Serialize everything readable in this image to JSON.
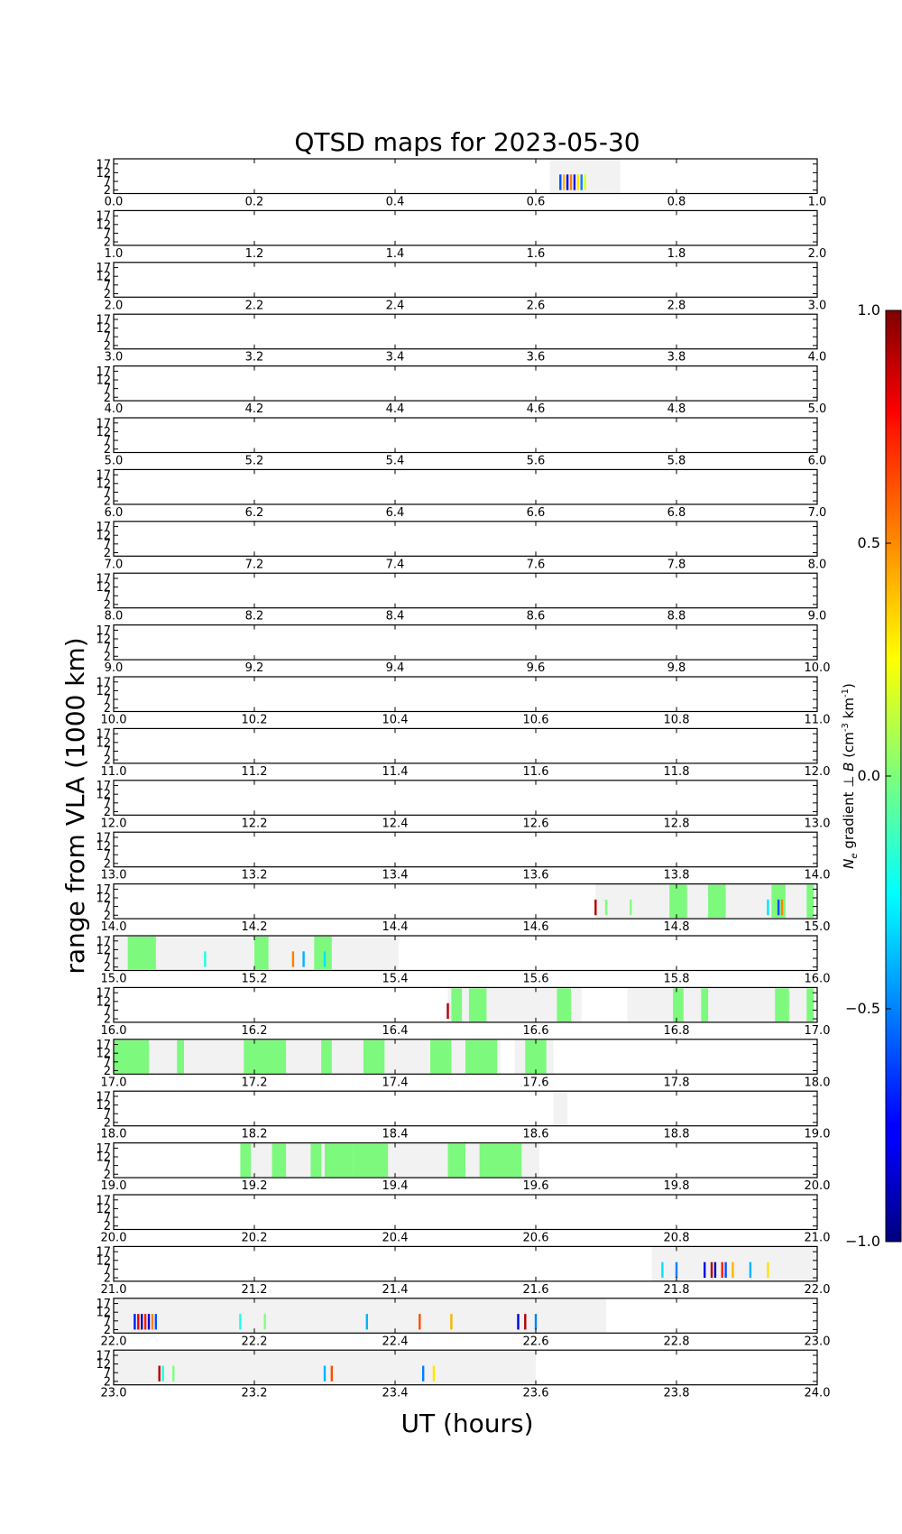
{
  "chart_data": {
    "type": "heatmap",
    "title": "QTSD maps for 2023-05-30",
    "xlabel": "UT (hours)",
    "ylabel": "range from VLA (1000 km)",
    "y_ticks": [
      "17",
      "12",
      "7",
      "2"
    ],
    "ylim": [
      0,
      20
    ],
    "panel_count": 24,
    "panel_hours": 1,
    "x_tick_step": 0.2,
    "colorbar": {
      "label": "N_e gradient ⊥ B (cm⁻³ km⁻¹)",
      "label_main": "gradient",
      "label_var": "N",
      "label_sub": "e",
      "label_b": "B",
      "label_units": "(cm",
      "label_units_exp": "-3",
      "label_units_km": "km",
      "label_units_km_exp": "-1",
      "label_close": ")",
      "ticks": [
        "1.0",
        "0.5",
        "0.0",
        "−0.5",
        "−1.0"
      ],
      "min": -1.0,
      "max": 1.0
    },
    "panels": [
      {
        "start": 0.0,
        "coverage": [
          [
            0.62,
            0.72
          ]
        ],
        "green_bands": [],
        "features": [
          {
            "t": 0.635,
            "v": -0.6
          },
          {
            "t": 0.64,
            "v": 0.4
          },
          {
            "t": 0.645,
            "v": -0.8
          },
          {
            "t": 0.65,
            "v": 0.5
          },
          {
            "t": 0.655,
            "v": -0.7
          },
          {
            "t": 0.66,
            "v": 0.3
          },
          {
            "t": 0.665,
            "v": -0.5
          },
          {
            "t": 0.67,
            "v": 0.2
          }
        ]
      },
      {
        "start": 1.0,
        "coverage": [],
        "green_bands": [],
        "features": []
      },
      {
        "start": 2.0,
        "coverage": [],
        "green_bands": [],
        "features": []
      },
      {
        "start": 3.0,
        "coverage": [],
        "green_bands": [],
        "features": []
      },
      {
        "start": 4.0,
        "coverage": [],
        "green_bands": [],
        "features": []
      },
      {
        "start": 5.0,
        "coverage": [],
        "green_bands": [],
        "features": []
      },
      {
        "start": 6.0,
        "coverage": [],
        "green_bands": [],
        "features": []
      },
      {
        "start": 7.0,
        "coverage": [],
        "green_bands": [],
        "features": []
      },
      {
        "start": 8.0,
        "coverage": [],
        "green_bands": [],
        "features": []
      },
      {
        "start": 9.0,
        "coverage": [],
        "green_bands": [],
        "features": []
      },
      {
        "start": 10.0,
        "coverage": [],
        "green_bands": [],
        "features": []
      },
      {
        "start": 11.0,
        "coverage": [],
        "green_bands": [],
        "features": []
      },
      {
        "start": 12.0,
        "coverage": [],
        "green_bands": [],
        "features": []
      },
      {
        "start": 13.0,
        "coverage": [],
        "green_bands": [],
        "features": []
      },
      {
        "start": 14.0,
        "coverage": [
          [
            0.685,
            1.0
          ]
        ],
        "green_bands": [
          [
            0.79,
            0.815
          ],
          [
            0.845,
            0.87
          ],
          [
            0.935,
            0.955
          ],
          [
            0.985,
            0.995
          ]
        ],
        "features": [
          {
            "t": 0.7,
            "v": 0.0
          },
          {
            "t": 0.735,
            "v": 0.0
          },
          {
            "t": 0.93,
            "v": -0.3
          },
          {
            "t": 0.945,
            "v": -0.6
          },
          {
            "t": 0.95,
            "v": 0.5
          },
          {
            "t": 0.685,
            "v": 0.9
          }
        ]
      },
      {
        "start": 15.0,
        "coverage": [
          [
            0.0,
            0.405
          ]
        ],
        "green_bands": [
          [
            0.02,
            0.06
          ],
          [
            0.2,
            0.22
          ],
          [
            0.285,
            0.31
          ]
        ],
        "features": [
          {
            "t": 0.13,
            "v": -0.2
          },
          {
            "t": 0.255,
            "v": 0.5
          },
          {
            "t": 0.27,
            "v": -0.4
          },
          {
            "t": 0.3,
            "v": -0.3
          }
        ]
      },
      {
        "start": 16.0,
        "coverage": [
          [
            0.475,
            0.665
          ],
          [
            0.73,
            1.0
          ]
        ],
        "green_bands": [
          [
            0.48,
            0.495
          ],
          [
            0.505,
            0.53
          ],
          [
            0.63,
            0.65
          ],
          [
            0.795,
            0.81
          ],
          [
            0.835,
            0.845
          ],
          [
            0.94,
            0.96
          ],
          [
            0.985,
            0.995
          ]
        ],
        "features": [
          {
            "t": 0.475,
            "v": 0.9
          }
        ]
      },
      {
        "start": 17.0,
        "coverage": [
          [
            0.0,
            0.55
          ],
          [
            0.57,
            0.625
          ]
        ],
        "green_bands": [
          [
            0.0,
            0.05
          ],
          [
            0.09,
            0.1
          ],
          [
            0.185,
            0.245
          ],
          [
            0.295,
            0.31
          ],
          [
            0.355,
            0.385
          ],
          [
            0.45,
            0.48
          ],
          [
            0.5,
            0.545
          ],
          [
            0.585,
            0.615
          ]
        ],
        "features": []
      },
      {
        "start": 18.0,
        "coverage": [
          [
            0.625,
            0.645
          ]
        ],
        "green_bands": [],
        "features": []
      },
      {
        "start": 19.0,
        "coverage": [
          [
            0.18,
            0.605
          ]
        ],
        "green_bands": [
          [
            0.18,
            0.195
          ],
          [
            0.225,
            0.245
          ],
          [
            0.28,
            0.295
          ],
          [
            0.3,
            0.34
          ],
          [
            0.34,
            0.39
          ],
          [
            0.475,
            0.5
          ],
          [
            0.52,
            0.58
          ]
        ],
        "features": []
      },
      {
        "start": 20.0,
        "coverage": [],
        "green_bands": [],
        "features": []
      },
      {
        "start": 21.0,
        "coverage": [
          [
            0.765,
            1.0
          ]
        ],
        "green_bands": [],
        "features": [
          {
            "t": 0.78,
            "v": -0.3
          },
          {
            "t": 0.8,
            "v": -0.5
          },
          {
            "t": 0.84,
            "v": -0.8
          },
          {
            "t": 0.85,
            "v": 0.9
          },
          {
            "t": 0.855,
            "v": -0.9
          },
          {
            "t": 0.865,
            "v": 0.7
          },
          {
            "t": 0.87,
            "v": -0.6
          },
          {
            "t": 0.88,
            "v": 0.4
          },
          {
            "t": 0.905,
            "v": -0.4
          },
          {
            "t": 0.93,
            "v": 0.3
          }
        ]
      },
      {
        "start": 22.0,
        "coverage": [
          [
            0.0,
            0.7
          ]
        ],
        "green_bands": [],
        "features": [
          {
            "t": 0.03,
            "v": -0.7
          },
          {
            "t": 0.035,
            "v": 0.8
          },
          {
            "t": 0.04,
            "v": -0.9
          },
          {
            "t": 0.045,
            "v": 0.7
          },
          {
            "t": 0.05,
            "v": -0.8
          },
          {
            "t": 0.055,
            "v": 0.5
          },
          {
            "t": 0.06,
            "v": -0.6
          },
          {
            "t": 0.18,
            "v": -0.2
          },
          {
            "t": 0.215,
            "v": 0.0
          },
          {
            "t": 0.36,
            "v": -0.4
          },
          {
            "t": 0.435,
            "v": 0.6
          },
          {
            "t": 0.48,
            "v": 0.4
          },
          {
            "t": 0.575,
            "v": -0.8
          },
          {
            "t": 0.585,
            "v": 0.9
          },
          {
            "t": 0.6,
            "v": -0.5
          }
        ]
      },
      {
        "start": 23.0,
        "coverage": [
          [
            0.0,
            0.6
          ]
        ],
        "green_bands": [],
        "features": [
          {
            "t": 0.065,
            "v": 0.9
          },
          {
            "t": 0.07,
            "v": -0.2
          },
          {
            "t": 0.085,
            "v": 0.0
          },
          {
            "t": 0.3,
            "v": -0.4
          },
          {
            "t": 0.31,
            "v": 0.6
          },
          {
            "t": 0.44,
            "v": -0.5
          },
          {
            "t": 0.455,
            "v": 0.3
          }
        ]
      }
    ]
  }
}
